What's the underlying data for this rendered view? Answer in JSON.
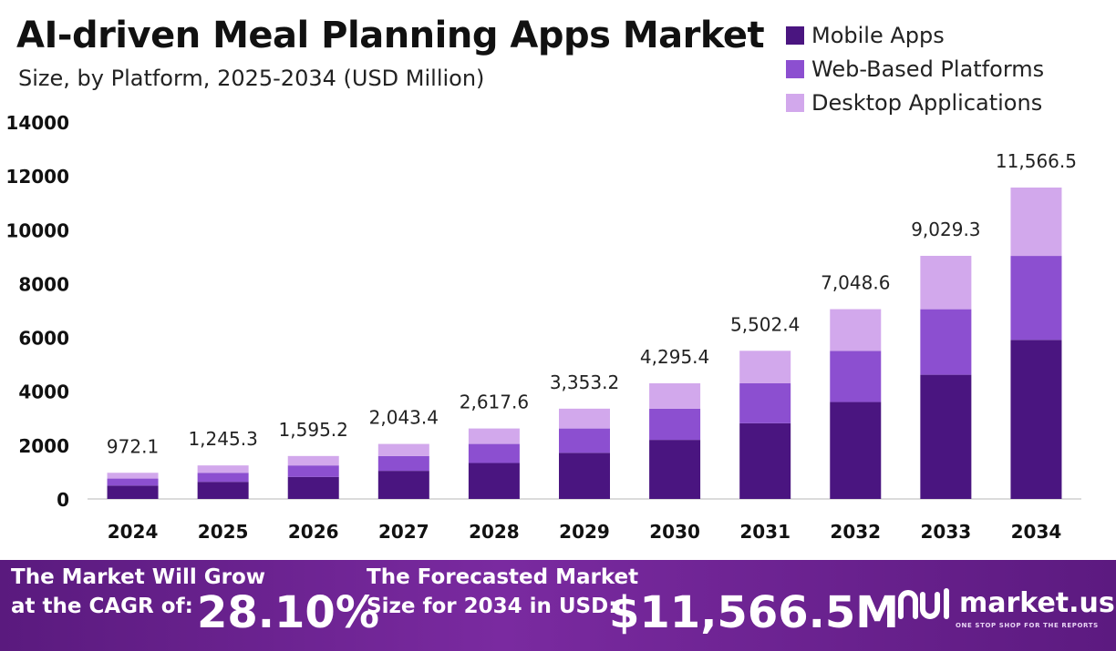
{
  "header": {
    "title": "AI-driven Meal Planning Apps Market",
    "subtitle": "Size, by Platform, 2025-2034 (USD Million)"
  },
  "legend": [
    {
      "label": "Mobile Apps",
      "color": "#4a1580"
    },
    {
      "label": "Web-Based Platforms",
      "color": "#8c4fd0"
    },
    {
      "label": "Desktop Applications",
      "color": "#d2a8ec"
    }
  ],
  "chart_data": {
    "type": "bar",
    "stacked": true,
    "categories": [
      "2024",
      "2025",
      "2026",
      "2027",
      "2028",
      "2029",
      "2030",
      "2031",
      "2032",
      "2033",
      "2034"
    ],
    "series": [
      {
        "name": "Mobile Apps",
        "color": "#4a1580",
        "values": [
          496,
          636,
          815,
          1044,
          1337,
          1713,
          2194,
          2811,
          3600,
          4612,
          5908
        ]
      },
      {
        "name": "Web-Based Platforms",
        "color": "#8c4fd0",
        "values": [
          262,
          336,
          430,
          551,
          706,
          904,
          1158,
          1484,
          1901,
          2435,
          3119
        ]
      },
      {
        "name": "Desktop Applications",
        "color": "#d2a8ec",
        "values": [
          214.1,
          273.3,
          350.2,
          448.4,
          574.6,
          736.2,
          943.4,
          1207.4,
          1547.6,
          1982.3,
          2539.5
        ]
      }
    ],
    "totals": [
      972.1,
      1245.3,
      1595.2,
      2043.4,
      2617.6,
      3353.2,
      4295.4,
      5502.4,
      7048.6,
      9029.3,
      11566.5
    ],
    "total_labels": [
      "972.1",
      "1,245.3",
      "1,595.2",
      "2,043.4",
      "2,617.6",
      "3,353.2",
      "4,295.4",
      "5,502.4",
      "7,048.6",
      "9,029.3",
      "11,566.5"
    ],
    "yticks": [
      "0",
      "2000",
      "4000",
      "6000",
      "8000",
      "10000",
      "12000",
      "14000"
    ],
    "ylim": [
      0,
      14000
    ],
    "legend_position": "top-right",
    "grid": false
  },
  "footer": {
    "cagr_line1": "The Market Will Grow",
    "cagr_line2": "at the CAGR of:",
    "cagr_value": "28.10%",
    "forecast_line1": "The Forecasted Market",
    "forecast_line2": "Size for 2034 in USD:",
    "forecast_value": "$11,566.5M",
    "brand_name": "market.us",
    "brand_tagline": "ONE STOP SHOP FOR THE REPORTS"
  }
}
